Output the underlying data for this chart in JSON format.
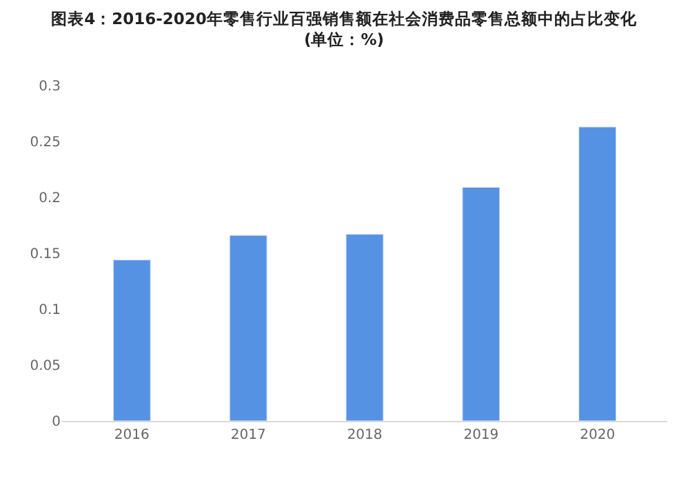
{
  "chart_data": {
    "type": "bar",
    "title": "图表4：2016-2020年零售行业百强销售额在社会消费品零售总额中的占比变化",
    "subtitle": "(单位：%)",
    "categories": [
      "2016",
      "2017",
      "2018",
      "2019",
      "2020"
    ],
    "values": [
      0.144,
      0.166,
      0.167,
      0.209,
      0.263
    ],
    "color": "#5692e4",
    "ylim": [
      0,
      0.3
    ],
    "yticks": [
      0,
      0.05,
      0.1,
      0.15,
      0.2,
      0.25,
      0.3
    ],
    "grid": false
  }
}
